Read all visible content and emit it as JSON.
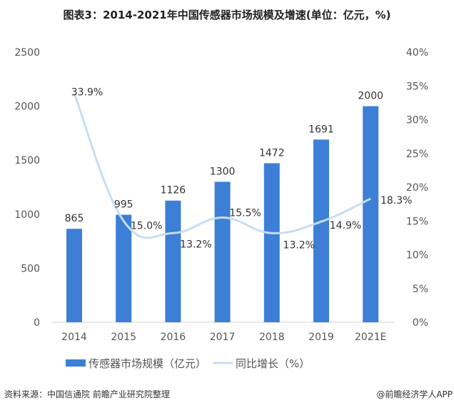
{
  "chart_data": {
    "type": "bar+line",
    "title": "图表3：2014-2021年中国传感器市场规模及增速(单位：亿元，%)",
    "categories": [
      "2014",
      "2015",
      "2016",
      "2017",
      "2018",
      "2019",
      "2021E"
    ],
    "series": [
      {
        "name": "传感器市场规模（亿元）",
        "type": "bar",
        "axis": "left",
        "color": "#3d7fd6",
        "values": [
          865,
          995,
          1126,
          1300,
          1472,
          1691,
          2000
        ],
        "labels": [
          "865",
          "995",
          "1126",
          "1300",
          "1472",
          "1691",
          "2000"
        ]
      },
      {
        "name": "同比增长（%）",
        "type": "line",
        "axis": "right",
        "color": "#c7ddf3",
        "smooth": true,
        "values": [
          33.9,
          15.0,
          13.2,
          15.5,
          13.2,
          14.9,
          18.3
        ],
        "labels": [
          "33.9%",
          "15.0%",
          "13.2%",
          "15.5%",
          "13.2%",
          "14.9%",
          "18.3%"
        ]
      }
    ],
    "left_axis": {
      "ylim": [
        0,
        2500
      ],
      "ticks": [
        "0",
        "500",
        "1000",
        "1500",
        "2000",
        "2500"
      ]
    },
    "right_axis": {
      "ylim": [
        0,
        40
      ],
      "ticks": [
        "0%",
        "5%",
        "10%",
        "15%",
        "20%",
        "25%",
        "30%",
        "35%",
        "40%"
      ]
    },
    "grid": false,
    "legend": "bottom"
  },
  "footer": {
    "source": "资料来源：中国信通院 前瞻产业研究院整理",
    "credit": "@前瞻经济学人APP"
  }
}
